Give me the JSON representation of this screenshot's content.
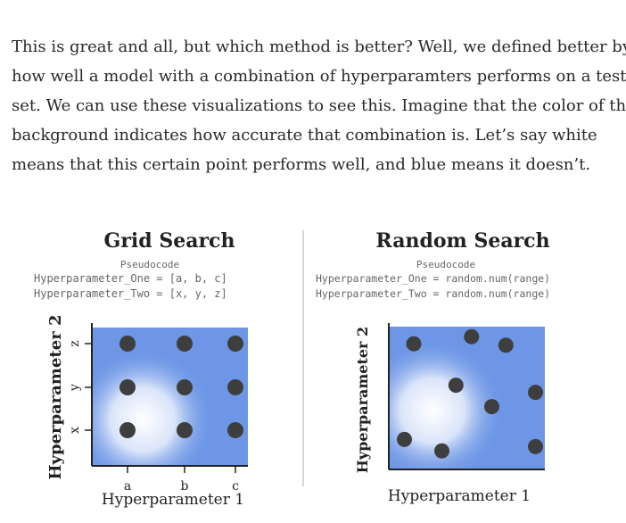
{
  "article": {
    "paragraph_lines": [
      "This is great and all, but which method is better? Well, we defined better by",
      "how well a model with a combination of hyperparamters performs on a test",
      "set. We can use these visualizations to see this. Imagine that the color of the",
      "background indicates how accurate that combination is. Let’s say white",
      "means that this certain point performs well, and blue means it doesn’t."
    ]
  },
  "figure": {
    "colors": {
      "plot_bg": "#6d96e6",
      "glow": "#ffffff",
      "point": "#3e3e3e",
      "divider": "#b0b0b0",
      "axis": "#222222"
    },
    "grid": {
      "title": "Grid Search",
      "pseudo_label": "Pseudocode",
      "code_line_1": "Hyperparameter_One = [a, b, c]",
      "code_line_2": "Hyperparameter_Two = [x, y, z]",
      "ylabel": "Hyperparameter 2",
      "xlabel": "Hyperparameter 1",
      "x_ticks": [
        "a",
        "b",
        "c"
      ],
      "y_ticks": [
        "z",
        "y",
        "x"
      ],
      "points": [
        {
          "x": "a",
          "y": "z"
        },
        {
          "x": "b",
          "y": "z"
        },
        {
          "x": "c",
          "y": "z"
        },
        {
          "x": "a",
          "y": "y"
        },
        {
          "x": "b",
          "y": "y"
        },
        {
          "x": "c",
          "y": "y"
        },
        {
          "x": "a",
          "y": "x"
        },
        {
          "x": "b",
          "y": "x"
        },
        {
          "x": "c",
          "y": "x"
        }
      ]
    },
    "random": {
      "title": "Random Search",
      "pseudo_label": "Pseudocode",
      "code_line_1": "Hyperparameter_One = random.num(range)",
      "code_line_2": "Hyperparameter_Two = random.num(range)",
      "ylabel": "Hyperparameter 2",
      "xlabel": "Hyperparameter 1",
      "points": [
        {
          "x": 0.16,
          "y": 0.12
        },
        {
          "x": 0.53,
          "y": 0.07
        },
        {
          "x": 0.75,
          "y": 0.13
        },
        {
          "x": 0.43,
          "y": 0.41
        },
        {
          "x": 0.94,
          "y": 0.46
        },
        {
          "x": 0.66,
          "y": 0.56
        },
        {
          "x": 0.1,
          "y": 0.79
        },
        {
          "x": 0.34,
          "y": 0.87
        },
        {
          "x": 0.94,
          "y": 0.84
        }
      ]
    }
  }
}
